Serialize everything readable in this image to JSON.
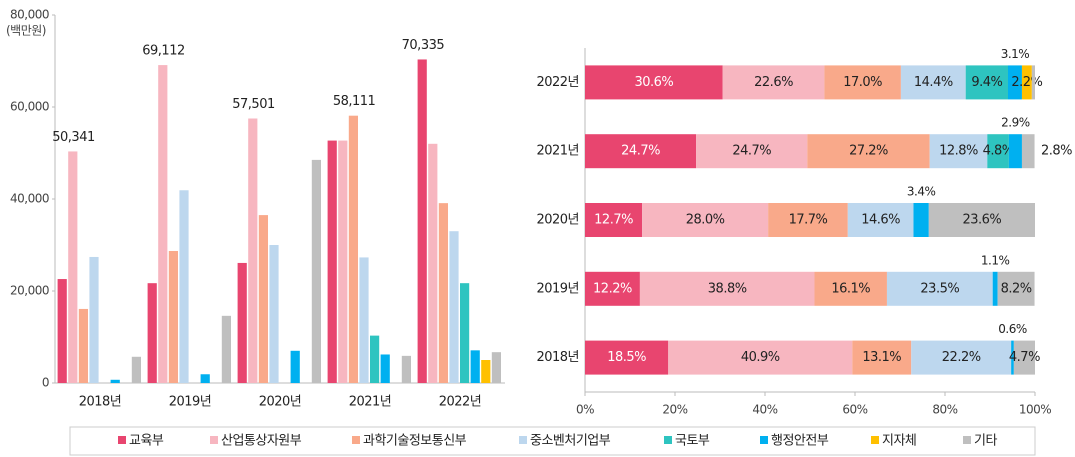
{
  "chart_data": [
    {
      "type": "bar",
      "y_unit": "(백만원)",
      "categories": [
        "2018년",
        "2019년",
        "2020년",
        "2021년",
        "2022년"
      ],
      "ylim": [
        0,
        80000
      ],
      "yticks": [
        0,
        {
          "value": 20000,
          "label": "20,000"
        },
        {
          "value": 40000,
          "label": "40,000"
        },
        {
          "value": 60000,
          "label": "60,000"
        },
        {
          "value": 80000,
          "label": "80,000"
        }
      ],
      "series": [
        {
          "name": "교육부",
          "color": "#e8456f",
          "values": [
            22600,
            21700,
            26100,
            52700,
            70335
          ],
          "value_labels": [
            null,
            null,
            null,
            null,
            "70,335"
          ]
        },
        {
          "name": "산업통상자원부",
          "color": "#f7b6c0",
          "values": [
            50341,
            69112,
            57501,
            52700,
            52000
          ],
          "value_labels": [
            "50,341",
            "69,112",
            "57,501",
            null,
            null
          ]
        },
        {
          "name": "과학기술정보통신부",
          "color": "#f9a98a",
          "values": [
            16100,
            28700,
            36500,
            58111,
            39100
          ],
          "value_labels": [
            null,
            null,
            null,
            "58,111",
            null
          ]
        },
        {
          "name": "중소벤처기업부",
          "color": "#bdd7ee",
          "values": [
            27400,
            41900,
            30000,
            27300,
            33000
          ]
        },
        {
          "name": "국토부",
          "color": "#2ec4c0",
          "values": [
            0,
            0,
            0,
            10300,
            21700
          ]
        },
        {
          "name": "행정안전부",
          "color": "#00b0f0",
          "values": [
            700,
            1900,
            7000,
            6200,
            7100
          ]
        },
        {
          "name": "지자체",
          "color": "#ffc000",
          "values": [
            0,
            0,
            0,
            0,
            5000
          ]
        },
        {
          "name": "기타",
          "color": "#bfbfbf",
          "values": [
            5700,
            14600,
            48500,
            5900,
            6700
          ]
        }
      ]
    },
    {
      "type": "stackedbar",
      "categories": [
        "2022년",
        "2021년",
        "2020년",
        "2019년",
        "2018년"
      ],
      "xlim": [
        0,
        100
      ],
      "xticks": [
        {
          "value": 0,
          "label": "0%"
        },
        {
          "value": 20,
          "label": "20%"
        },
        {
          "value": 40,
          "label": "40%"
        },
        {
          "value": 60,
          "label": "60%"
        },
        {
          "value": 80,
          "label": "80%"
        },
        {
          "value": 100,
          "label": "100%"
        }
      ],
      "series": [
        {
          "values": [
            30.6,
            24.7,
            12.7,
            12.2,
            18.5
          ],
          "value_labels": [
            "30.6%",
            "24.7%",
            "12.7%",
            "12.2%",
            "18.5%"
          ]
        },
        {
          "values": [
            22.6,
            24.7,
            28.0,
            38.8,
            40.9
          ],
          "value_labels": [
            "22.6%",
            "24.7%",
            "28.0%",
            "38.8%",
            "40.9%"
          ]
        },
        {
          "values": [
            17.0,
            27.2,
            17.7,
            16.1,
            13.1
          ],
          "value_labels": [
            "17.0%",
            "27.2%",
            "17.7%",
            "16.1%",
            "13.1%"
          ]
        },
        {
          "values": [
            14.4,
            12.8,
            14.6,
            23.5,
            22.2
          ],
          "value_labels": [
            "14.4%",
            "12.8%",
            "14.6%",
            "23.5%",
            "22.2%"
          ]
        },
        {
          "values": [
            9.4,
            4.8,
            0,
            0,
            0
          ],
          "value_labels": [
            "9.4%",
            "4.8%",
            null,
            null,
            null
          ]
        },
        {
          "values": [
            3.1,
            2.9,
            3.4,
            1.1,
            0.6
          ],
          "value_labels": [
            "3.1%",
            "2.9%",
            "3.4%",
            "1.1%",
            "0.6%"
          ]
        },
        {
          "values": [
            2.2,
            0,
            0,
            0,
            0
          ],
          "value_labels": [
            "2.2%",
            null,
            null,
            null,
            null
          ]
        },
        {
          "values": [
            0.7,
            2.8,
            23.6,
            8.2,
            4.7
          ],
          "value_labels": [
            null,
            "2.8%",
            "23.6%",
            "8.2%",
            "4.7%"
          ]
        }
      ]
    }
  ]
}
